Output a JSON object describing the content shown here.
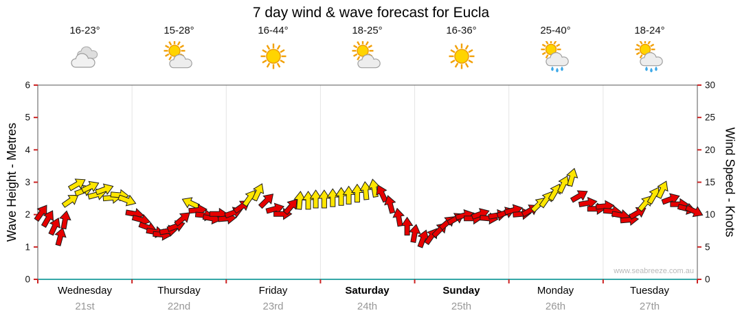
{
  "title": "7 day wind & wave forecast for Eucla",
  "watermark": "www.seabreeze.com.au",
  "axes": {
    "left_label": "Wave Height - Metres",
    "right_label": "Wind Speed - Knots",
    "left_ticks": [
      0,
      1,
      2,
      3,
      4,
      5,
      6
    ],
    "right_ticks": [
      0,
      5,
      10,
      15,
      20,
      25,
      30
    ]
  },
  "days": [
    {
      "name": "Wednesday",
      "date": "21st",
      "temp": "16-23°",
      "icon": "cloudy",
      "bold": false
    },
    {
      "name": "Thursday",
      "date": "22nd",
      "temp": "15-28°",
      "icon": "partly-cloudy",
      "bold": false
    },
    {
      "name": "Friday",
      "date": "23rd",
      "temp": "16-44°",
      "icon": "sunny",
      "bold": false
    },
    {
      "name": "Saturday",
      "date": "24th",
      "temp": "18-25°",
      "icon": "partly-cloudy",
      "bold": true
    },
    {
      "name": "Sunday",
      "date": "25th",
      "temp": "16-36°",
      "icon": "sunny",
      "bold": true
    },
    {
      "name": "Monday",
      "date": "26th",
      "temp": "25-40°",
      "icon": "partly-cloudy-rain",
      "bold": false
    },
    {
      "name": "Tuesday",
      "date": "27th",
      "temp": "18-24°",
      "icon": "partly-cloudy-rain",
      "bold": false
    }
  ],
  "colors": {
    "red": "#e60000",
    "yellow": "#ffe600",
    "tick": "#cc2222",
    "grid": "#e4e4e4",
    "border": "#555555",
    "bottom_axis": "#35a7a7",
    "date_text": "#979797",
    "watermark_text": "#b9b9b9"
  },
  "chart_data": {
    "type": "scatter",
    "description": "Wind-direction arrows across 7 days; y maps to both wave height (0-6 m, left axis) and wind speed (0-30 kn, right axis); wave_metres = knots/5",
    "x_range_days": [
      0,
      7
    ],
    "ylim_left_metres": [
      0,
      6
    ],
    "ylim_right_knots": [
      0,
      30
    ],
    "categories": [
      "Wednesday 21st",
      "Thursday 22nd",
      "Friday 23rd",
      "Saturday 24th",
      "Sunday 25th",
      "Monday 26th",
      "Tuesday 27th"
    ],
    "arrow_format": [
      "day_position_0_to_7",
      "wind_speed_knots",
      "arrow_direction_deg_cw_from_up",
      "color_code R=red Y=yellow"
    ],
    "arrows": [
      [
        0.04,
        10.3,
        35,
        "R"
      ],
      [
        0.11,
        9.4,
        30,
        "R"
      ],
      [
        0.18,
        8.2,
        25,
        "R"
      ],
      [
        0.24,
        6.6,
        15,
        "R"
      ],
      [
        0.29,
        9.2,
        10,
        "R"
      ],
      [
        0.35,
        12.2,
        55,
        "Y"
      ],
      [
        0.42,
        14.7,
        60,
        "Y"
      ],
      [
        0.49,
        13.7,
        70,
        "Y"
      ],
      [
        0.56,
        14.3,
        65,
        "Y"
      ],
      [
        0.63,
        13.1,
        75,
        "Y"
      ],
      [
        0.71,
        13.9,
        70,
        "Y"
      ],
      [
        0.79,
        12.6,
        85,
        "Y"
      ],
      [
        0.87,
        13.0,
        95,
        "Y"
      ],
      [
        0.95,
        12.2,
        110,
        "Y"
      ],
      [
        1.03,
        10.1,
        100,
        "R"
      ],
      [
        1.1,
        9.2,
        105,
        "R"
      ],
      [
        1.17,
        8.0,
        110,
        "R"
      ],
      [
        1.25,
        7.3,
        100,
        "R"
      ],
      [
        1.32,
        6.9,
        95,
        "R"
      ],
      [
        1.39,
        7.5,
        80,
        "R"
      ],
      [
        1.47,
        8.2,
        70,
        "R"
      ],
      [
        1.54,
        9.4,
        50,
        "R"
      ],
      [
        1.62,
        11.8,
        -65,
        "Y"
      ],
      [
        1.7,
        10.7,
        85,
        "R"
      ],
      [
        1.77,
        9.9,
        95,
        "R"
      ],
      [
        1.85,
        9.4,
        100,
        "R"
      ],
      [
        1.92,
        10.1,
        90,
        "R"
      ],
      [
        2.01,
        9.4,
        85,
        "R"
      ],
      [
        2.08,
        10.3,
        70,
        "R"
      ],
      [
        2.17,
        11.3,
        55,
        "R"
      ],
      [
        2.25,
        12.6,
        35,
        "Y"
      ],
      [
        2.34,
        13.5,
        25,
        "Y"
      ],
      [
        2.43,
        12.2,
        45,
        "R"
      ],
      [
        2.52,
        10.9,
        75,
        "R"
      ],
      [
        2.6,
        10.1,
        90,
        "R"
      ],
      [
        2.69,
        11.3,
        40,
        "R"
      ],
      [
        2.78,
        12.2,
        5,
        "Y"
      ],
      [
        2.87,
        12.2,
        0,
        "Y"
      ],
      [
        2.95,
        12.4,
        0,
        "Y"
      ],
      [
        3.04,
        12.4,
        0,
        "Y"
      ],
      [
        3.13,
        12.6,
        0,
        "Y"
      ],
      [
        3.22,
        12.8,
        0,
        "Y"
      ],
      [
        3.3,
        13.0,
        0,
        "Y"
      ],
      [
        3.39,
        13.3,
        0,
        "Y"
      ],
      [
        3.48,
        13.7,
        -5,
        "Y"
      ],
      [
        3.57,
        14.1,
        -10,
        "Y"
      ],
      [
        3.65,
        13.3,
        -25,
        "R"
      ],
      [
        3.74,
        11.6,
        -15,
        "R"
      ],
      [
        3.83,
        9.6,
        -10,
        "R"
      ],
      [
        3.92,
        8.2,
        0,
        "R"
      ],
      [
        4.0,
        7.1,
        10,
        "R"
      ],
      [
        4.09,
        6.3,
        20,
        "R"
      ],
      [
        4.18,
        6.7,
        35,
        "R"
      ],
      [
        4.27,
        7.7,
        45,
        "R"
      ],
      [
        4.35,
        8.8,
        50,
        "R"
      ],
      [
        4.44,
        9.4,
        60,
        "R"
      ],
      [
        4.53,
        9.9,
        75,
        "R"
      ],
      [
        4.62,
        9.4,
        90,
        "R"
      ],
      [
        4.7,
        10.1,
        70,
        "R"
      ],
      [
        4.79,
        9.4,
        95,
        "R"
      ],
      [
        4.88,
        9.9,
        80,
        "R"
      ],
      [
        4.97,
        10.3,
        70,
        "R"
      ],
      [
        5.05,
        10.7,
        75,
        "R"
      ],
      [
        5.14,
        10.1,
        85,
        "R"
      ],
      [
        5.23,
        10.7,
        60,
        "R"
      ],
      [
        5.32,
        11.6,
        45,
        "Y"
      ],
      [
        5.4,
        12.4,
        35,
        "Y"
      ],
      [
        5.49,
        13.5,
        30,
        "Y"
      ],
      [
        5.58,
        14.7,
        25,
        "Y"
      ],
      [
        5.67,
        15.8,
        15,
        "Y"
      ],
      [
        5.75,
        12.9,
        60,
        "R"
      ],
      [
        5.84,
        11.8,
        80,
        "R"
      ],
      [
        5.93,
        10.9,
        90,
        "R"
      ],
      [
        6.02,
        11.3,
        85,
        "R"
      ],
      [
        6.1,
        10.5,
        95,
        "R"
      ],
      [
        6.19,
        9.9,
        100,
        "R"
      ],
      [
        6.28,
        9.2,
        85,
        "R"
      ],
      [
        6.37,
        10.3,
        60,
        "R"
      ],
      [
        6.45,
        11.8,
        40,
        "Y"
      ],
      [
        6.54,
        13.0,
        30,
        "Y"
      ],
      [
        6.63,
        13.9,
        25,
        "Y"
      ],
      [
        6.72,
        12.4,
        70,
        "R"
      ],
      [
        6.81,
        11.6,
        90,
        "R"
      ],
      [
        6.89,
        10.9,
        105,
        "R"
      ],
      [
        6.97,
        10.5,
        115,
        "R"
      ]
    ]
  }
}
